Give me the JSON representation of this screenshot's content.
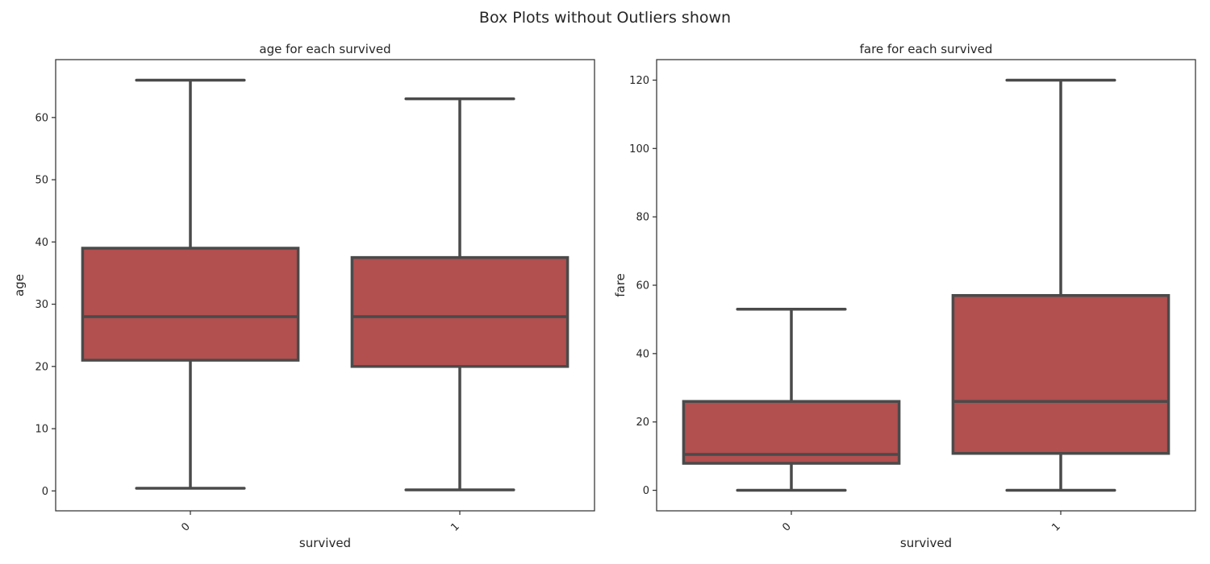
{
  "figure": {
    "suptitle": "Box Plots without Outliers shown"
  },
  "colors": {
    "box_fill": "#b24f4f",
    "box_edge": "#4a4a4a",
    "axes_edge": "#333333",
    "text": "#262626"
  },
  "chart_data": [
    {
      "type": "box",
      "title": "age for each survived",
      "xlabel": "survived",
      "ylabel": "age",
      "ylim": [
        -3.2,
        69.3
      ],
      "yticks": [
        0,
        10,
        20,
        30,
        40,
        50,
        60
      ],
      "categories": [
        "0",
        "1"
      ],
      "boxes": [
        {
          "category": "0",
          "whislo": 0.42,
          "q1": 21,
          "median": 28,
          "q3": 39,
          "whishi": 66
        },
        {
          "category": "1",
          "whislo": 0.17,
          "q1": 20,
          "median": 28,
          "q3": 37.5,
          "whishi": 63
        }
      ],
      "grid": false,
      "showfliers": false
    },
    {
      "type": "box",
      "title": "fare for each survived",
      "xlabel": "survived",
      "ylabel": "fare",
      "ylim": [
        -6,
        126
      ],
      "yticks": [
        0,
        20,
        40,
        60,
        80,
        100,
        120
      ],
      "categories": [
        "0",
        "1"
      ],
      "boxes": [
        {
          "category": "0",
          "whislo": 0,
          "q1": 7.9,
          "median": 10.5,
          "q3": 26,
          "whishi": 53
        },
        {
          "category": "1",
          "whislo": 0,
          "q1": 10.8,
          "median": 26,
          "q3": 57,
          "whishi": 120
        }
      ],
      "grid": false,
      "showfliers": false
    }
  ]
}
